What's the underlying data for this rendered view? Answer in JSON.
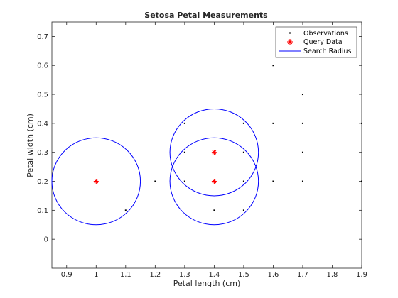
{
  "chart_data": {
    "type": "scatter",
    "title": "Setosa Petal Measurements",
    "xlabel": "Petal length (cm)",
    "ylabel": "Petal width (cm)",
    "xlim": [
      0.85,
      1.9
    ],
    "ylim": [
      -0.1,
      0.75
    ],
    "xticks": [
      "0.9",
      "1",
      "1.1",
      "1.2",
      "1.3",
      "1.4",
      "1.5",
      "1.6",
      "1.7",
      "1.8",
      "1.9"
    ],
    "yticks": [
      "0",
      "0.1",
      "0.2",
      "0.3",
      "0.4",
      "0.5",
      "0.6",
      "0.7"
    ],
    "xtick_values": [
      0.9,
      1.0,
      1.1,
      1.2,
      1.3,
      1.4,
      1.5,
      1.6,
      1.7,
      1.8,
      1.9
    ],
    "ytick_values": [
      0,
      0.1,
      0.2,
      0.3,
      0.4,
      0.5,
      0.6,
      0.7
    ],
    "grid": false,
    "legend_position": "top-right",
    "series": [
      {
        "name": "Observations",
        "marker": "dot",
        "color": "#000000",
        "points": [
          [
            1.1,
            0.1
          ],
          [
            1.2,
            0.2
          ],
          [
            1.3,
            0.2
          ],
          [
            1.3,
            0.3
          ],
          [
            1.3,
            0.4
          ],
          [
            1.4,
            0.1
          ],
          [
            1.4,
            0.2
          ],
          [
            1.4,
            0.3
          ],
          [
            1.5,
            0.1
          ],
          [
            1.5,
            0.2
          ],
          [
            1.5,
            0.3
          ],
          [
            1.5,
            0.4
          ],
          [
            1.6,
            0.2
          ],
          [
            1.6,
            0.4
          ],
          [
            1.6,
            0.6
          ],
          [
            1.7,
            0.2
          ],
          [
            1.7,
            0.3
          ],
          [
            1.7,
            0.4
          ],
          [
            1.7,
            0.5
          ],
          [
            1.9,
            0.2
          ],
          [
            1.9,
            0.4
          ]
        ]
      },
      {
        "name": "Query Data",
        "marker": "asterisk",
        "color": "#ff0000",
        "points": [
          [
            1.0,
            0.2
          ],
          [
            1.4,
            0.2
          ],
          [
            1.4,
            0.3
          ]
        ]
      },
      {
        "name": "Search Radius",
        "marker": "circle-line",
        "color": "#0000ff",
        "radius": 0.15,
        "centers": [
          [
            1.0,
            0.2
          ],
          [
            1.4,
            0.2
          ],
          [
            1.4,
            0.3
          ]
        ]
      }
    ]
  }
}
